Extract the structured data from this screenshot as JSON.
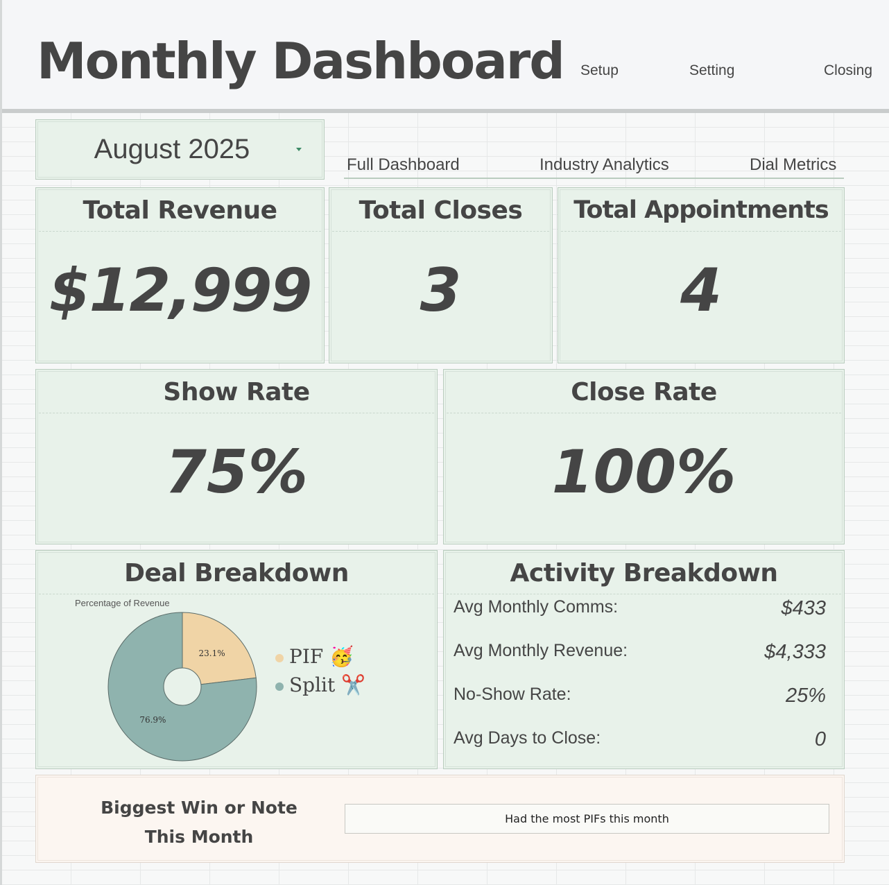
{
  "header": {
    "title": "Monthly Dashboard",
    "links": [
      "Setup",
      "Setting",
      "Closing"
    ]
  },
  "month_select": {
    "value": "August 2025",
    "icon": "caret-down-icon"
  },
  "nav_tabs": [
    "Full Dashboard",
    "Industry Analytics",
    "Dial Metrics"
  ],
  "kpis": {
    "total_revenue": {
      "label": "Total Revenue",
      "value": "$12,999"
    },
    "total_closes": {
      "label": "Total Closes",
      "value": "3"
    },
    "total_appointments": {
      "label": "Total Appointments",
      "value": "4"
    },
    "show_rate": {
      "label": "Show Rate",
      "value": "75%"
    },
    "close_rate": {
      "label": "Close Rate",
      "value": "100%"
    }
  },
  "deal_breakdown": {
    "title": "Deal Breakdown",
    "legend": [
      {
        "label": "PIF 🥳",
        "color": "#f0d4a6"
      },
      {
        "label": "Split ✂️",
        "color": "#8fb3ae"
      }
    ]
  },
  "chart_data": {
    "type": "pie",
    "title": "Percentage of Revenue",
    "donut": true,
    "categories": [
      "PIF",
      "Split"
    ],
    "values": [
      23.1,
      76.9
    ],
    "labels": [
      "23.1%",
      "76.9%"
    ],
    "colors": [
      "#f0d4a6",
      "#8fb3ae"
    ]
  },
  "activity_breakdown": {
    "title": "Activity Breakdown",
    "rows": [
      {
        "label": "Avg Monthly Comms:",
        "value": "$433"
      },
      {
        "label": "Avg Monthly Revenue:",
        "value": "$4,333"
      },
      {
        "label": "No-Show Rate:",
        "value": "25%"
      },
      {
        "label": "Avg Days to Close:",
        "value": "0"
      }
    ]
  },
  "note": {
    "label_line1": "Biggest Win or Note",
    "label_line2": "This Month",
    "value": "Had the most PIFs this month"
  }
}
